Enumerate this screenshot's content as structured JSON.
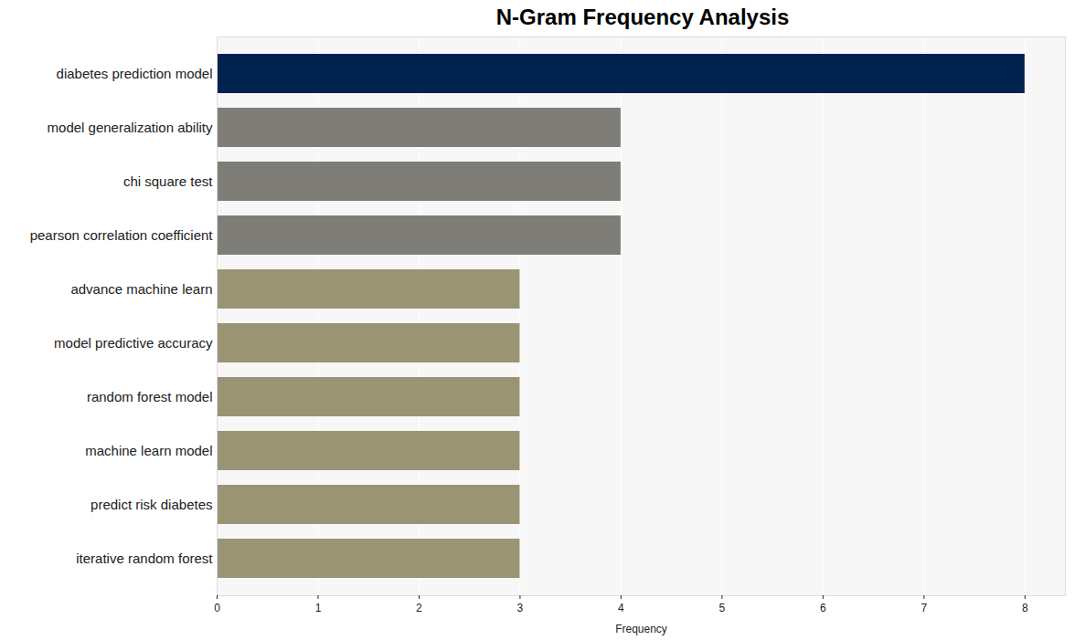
{
  "chart_data": {
    "type": "bar",
    "orientation": "horizontal",
    "title": "N-Gram Frequency Analysis",
    "x_label": "Frequency",
    "categories": [
      "diabetes prediction model",
      "model generalization ability",
      "chi square test",
      "pearson correlation coefficient",
      "advance machine learn",
      "model predictive accuracy",
      "random forest model",
      "machine learn model",
      "predict risk diabetes",
      "iterative random forest"
    ],
    "values": [
      8,
      4,
      4,
      4,
      3,
      3,
      3,
      3,
      3,
      3
    ],
    "colors": [
      "#00224e",
      "#7f7d78",
      "#7f7d78",
      "#7f7d78",
      "#9b9474",
      "#9b9474",
      "#9b9474",
      "#9b9474",
      "#9b9474",
      "#9b9474"
    ],
    "xlim": [
      0,
      8.4
    ],
    "xticks": [
      0,
      1,
      2,
      3,
      4,
      5,
      6,
      7,
      8
    ],
    "grid": true
  }
}
